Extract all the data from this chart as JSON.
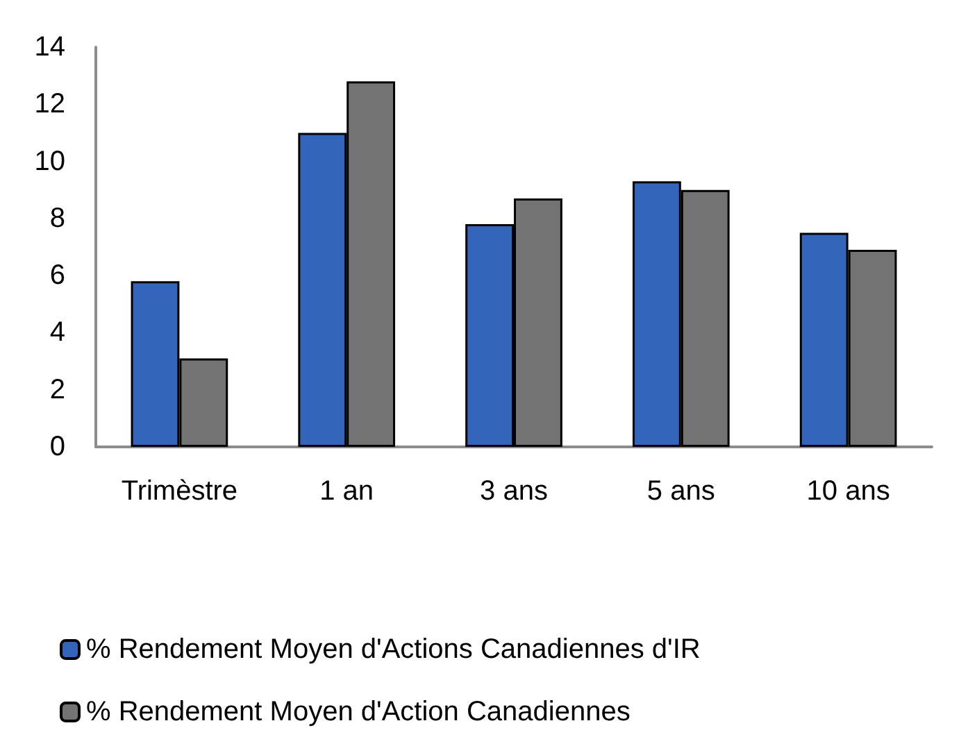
{
  "chart_data": {
    "type": "bar",
    "categories": [
      "Trimèstre",
      "1 an",
      "3 ans",
      "5 ans",
      "10 ans"
    ],
    "series": [
      {
        "name": "% Rendement Moyen d'Actions Canadiennes d'IR",
        "color": "#3366bb",
        "values": [
          5.8,
          11.0,
          7.8,
          9.3,
          7.5
        ]
      },
      {
        "name": "% Rendement Moyen d'Action Canadiennes",
        "color": "#737373",
        "values": [
          3.1,
          12.8,
          8.7,
          9.0,
          6.9
        ]
      }
    ],
    "ylim": [
      0,
      14
    ],
    "yticks": [
      0,
      2,
      4,
      6,
      8,
      10,
      12,
      14
    ],
    "legend": "bottom"
  }
}
